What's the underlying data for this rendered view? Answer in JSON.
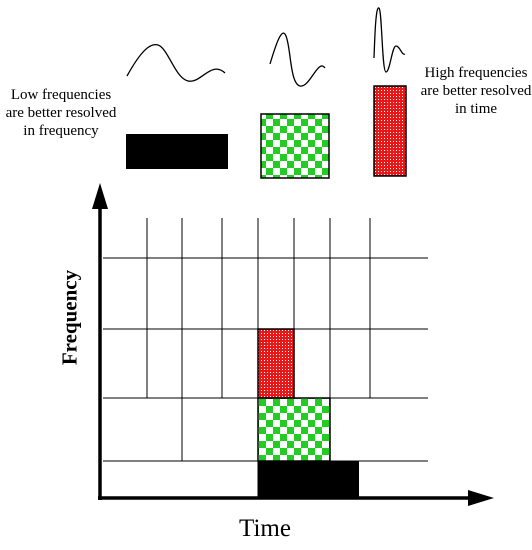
{
  "notes": {
    "low": "Low frequencies are better resolved in frequency",
    "high": "High frequencies are better resolved in time"
  },
  "axes": {
    "y_label": "Frequency",
    "x_label": "Time"
  },
  "colors": {
    "low_tile": "#000000",
    "mid_tile_a": "#22cc22",
    "mid_tile_b": "#ffffff",
    "high_tile": "#e81818",
    "grid": "#000000"
  }
}
